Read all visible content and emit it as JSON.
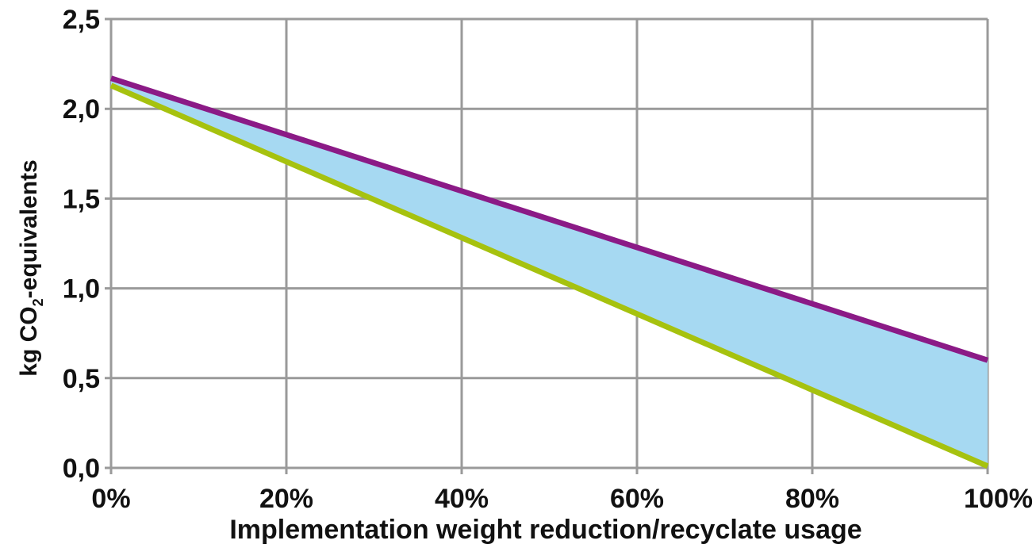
{
  "chart_data": {
    "type": "area",
    "xlabel": "Implementation weight reduction/recyclate usage",
    "ylabel": {
      "prefix": "kg CO",
      "subscript": "2",
      "suffix": "-equivalents"
    },
    "xlim": [
      0,
      100
    ],
    "ylim": [
      0,
      2.5
    ],
    "x_ticks": [
      0,
      20,
      40,
      60,
      80,
      100
    ],
    "x_tick_labels": [
      "0%",
      "20%",
      "40%",
      "60%",
      "80%",
      "100%"
    ],
    "y_ticks": [
      0,
      0.5,
      1.0,
      1.5,
      2.0,
      2.5
    ],
    "y_tick_labels": [
      "0,0",
      "0,5",
      "1,0",
      "1,5",
      "2,0",
      "2,5"
    ],
    "grid": true,
    "series": [
      {
        "x": [
          0,
          100
        ],
        "values": [
          2.17,
          0.6
        ],
        "color": "#8b1a86"
      },
      {
        "x": [
          0,
          100
        ],
        "values": [
          2.13,
          0.01
        ],
        "color": "#a6c20f"
      }
    ],
    "band_fill": "#a6d9f2",
    "grid_color": "#9a9a9a"
  }
}
